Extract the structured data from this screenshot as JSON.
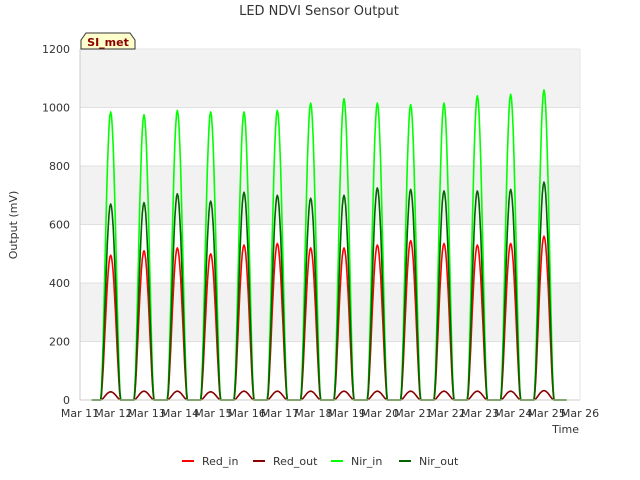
{
  "chart_data": {
    "type": "line",
    "title": "LED NDVI Sensor Output",
    "xlabel": "Time",
    "ylabel": "Output (mV)",
    "ylim": [
      0,
      1200
    ],
    "yticks": [
      0,
      200,
      400,
      600,
      800,
      1000,
      1200
    ],
    "xlim": [
      "2024-03-11",
      "2024-03-26"
    ],
    "xticks": [
      "Mar 11",
      "Mar 12",
      "Mar 13",
      "Mar 14",
      "Mar 15",
      "Mar 16",
      "Mar 17",
      "Mar 18",
      "Mar 19",
      "Mar 20",
      "Mar 21",
      "Mar 22",
      "Mar 23",
      "Mar 24",
      "Mar 25",
      "Mar 26"
    ],
    "grid": true,
    "legend_position": "bottom",
    "annotation": "SI_met",
    "days": [
      "Mar 12",
      "Mar 13",
      "Mar 14",
      "Mar 15",
      "Mar 16",
      "Mar 17",
      "Mar 18",
      "Mar 19",
      "Mar 20",
      "Mar 21",
      "Mar 22",
      "Mar 23",
      "Mar 24",
      "Mar 25"
    ],
    "series": [
      {
        "name": "Red_in",
        "color": "#ff0000",
        "daily_peaks": [
          495,
          510,
          520,
          500,
          530,
          535,
          520,
          520,
          530,
          545,
          535,
          530,
          535,
          560
        ]
      },
      {
        "name": "Red_out",
        "color": "#8b0000",
        "daily_peaks": [
          28,
          30,
          30,
          28,
          30,
          30,
          30,
          30,
          30,
          30,
          30,
          30,
          30,
          32
        ]
      },
      {
        "name": "Nir_in",
        "color": "#00ff00",
        "daily_peaks": [
          985,
          975,
          990,
          985,
          985,
          990,
          1015,
          1030,
          1015,
          1010,
          1015,
          1040,
          1045,
          1060
        ]
      },
      {
        "name": "Nir_out",
        "color": "#006400",
        "daily_peaks": [
          670,
          675,
          705,
          680,
          710,
          700,
          690,
          700,
          725,
          720,
          715,
          715,
          720,
          745
        ]
      }
    ]
  }
}
